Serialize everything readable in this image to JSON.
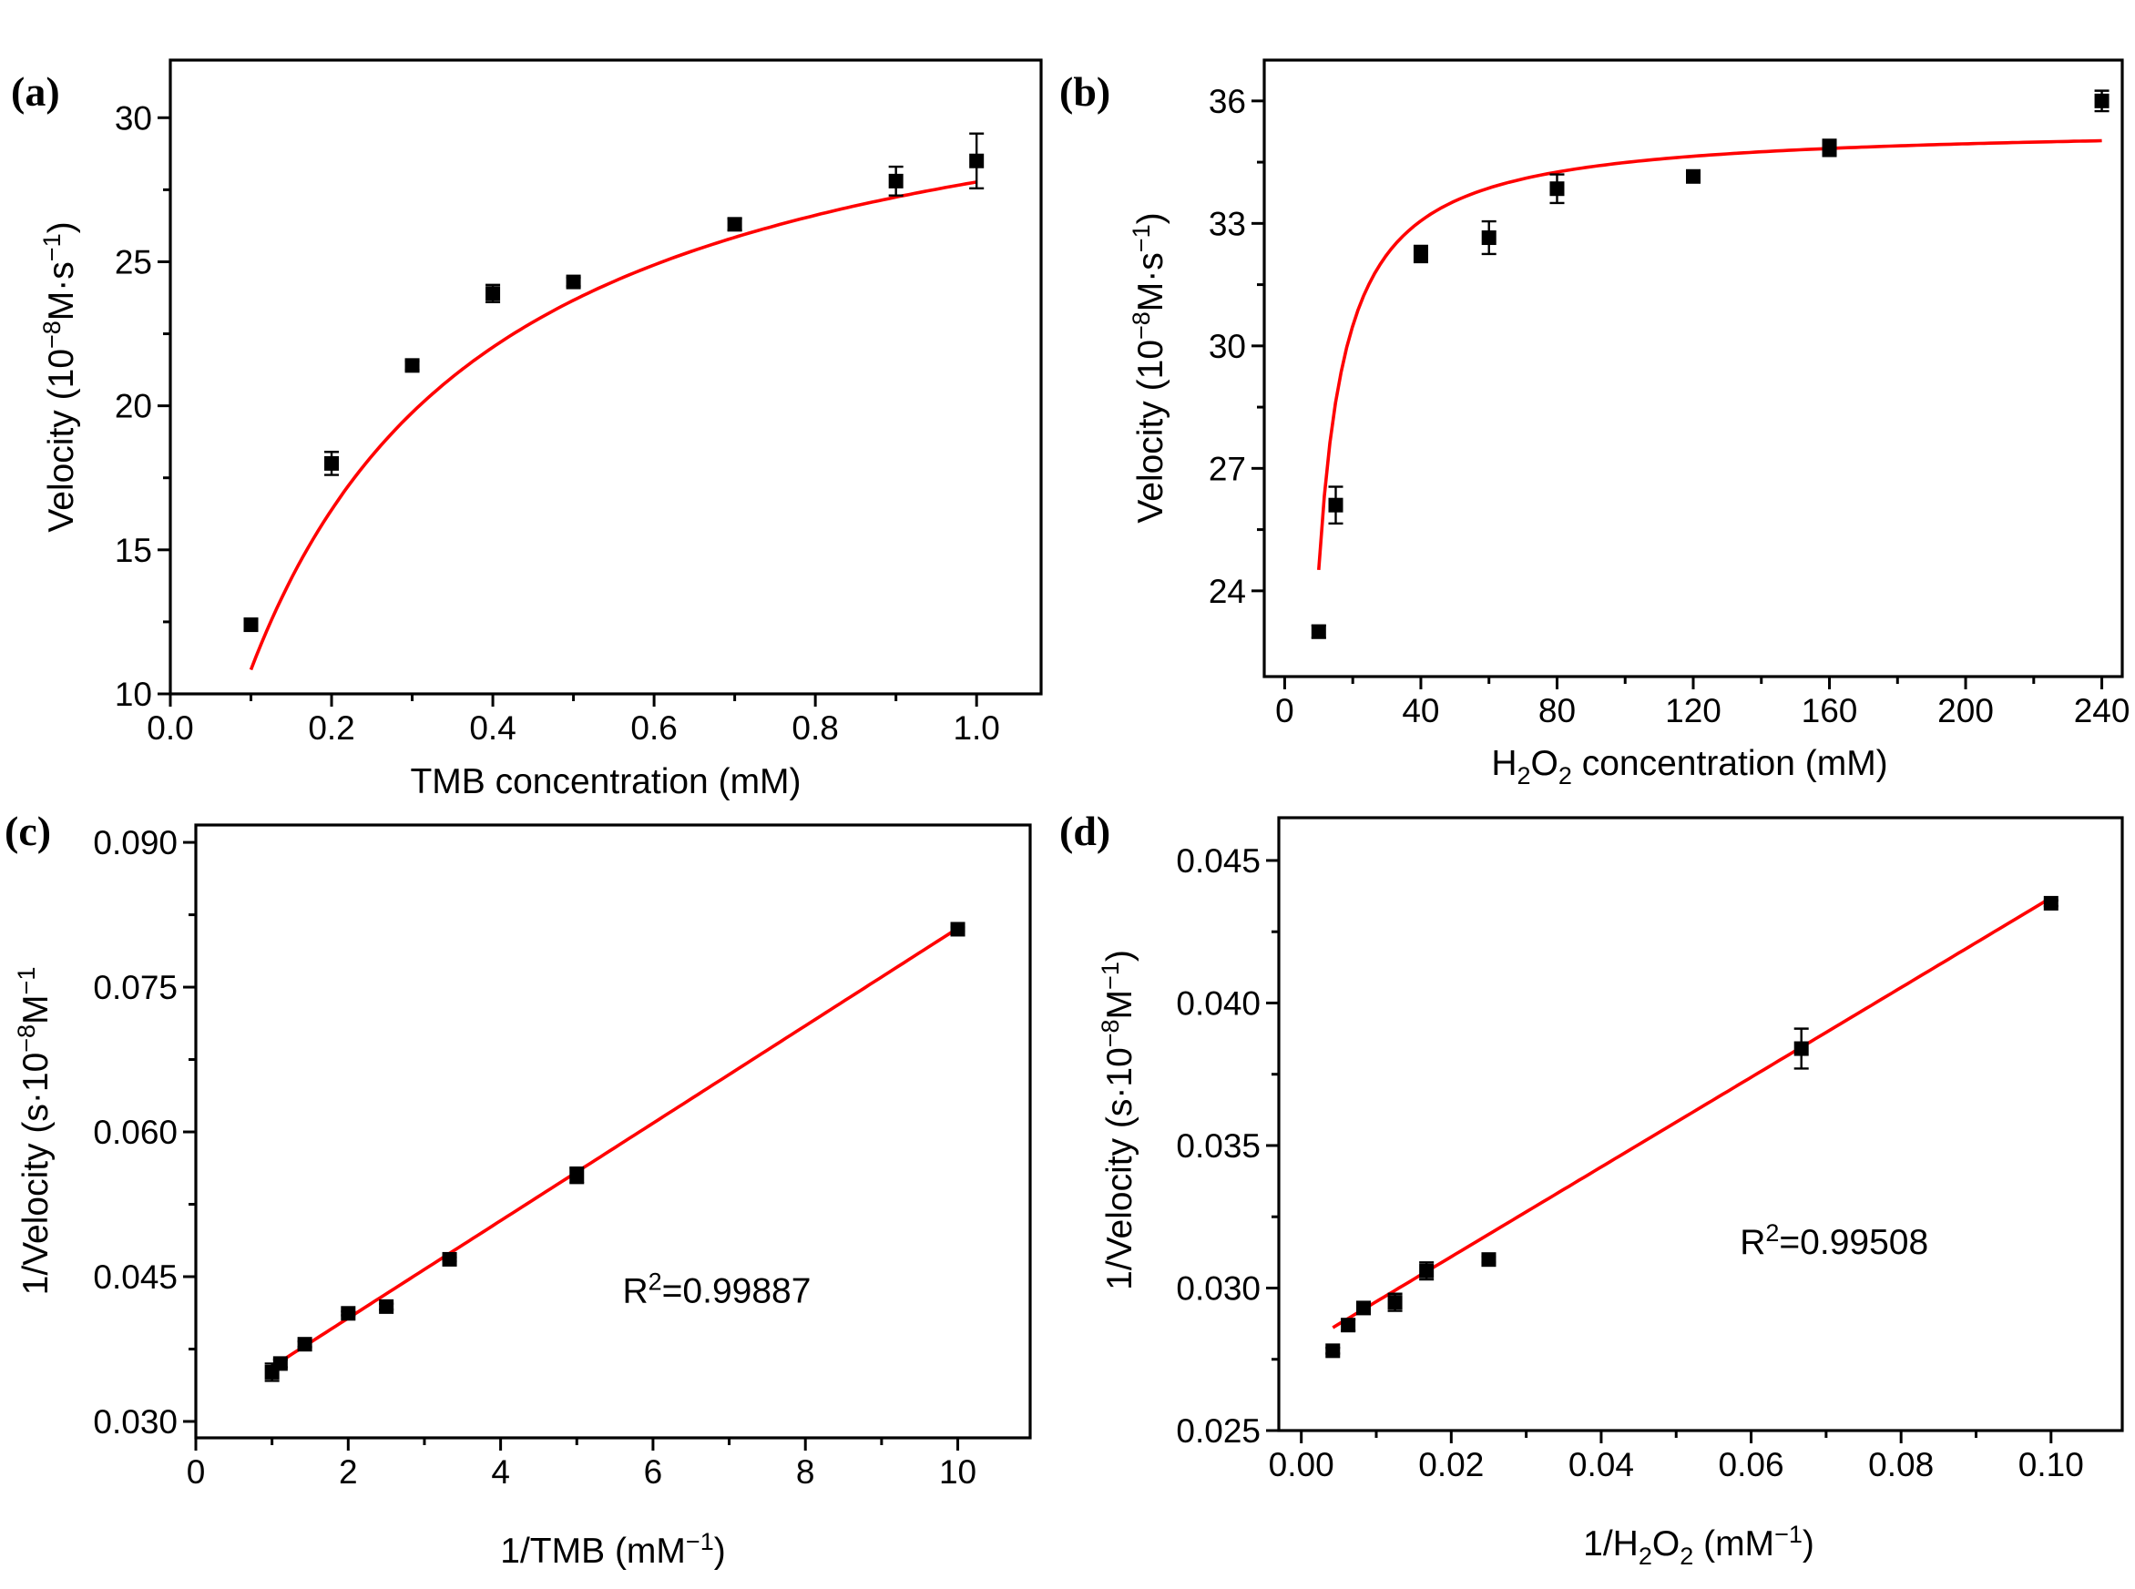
{
  "chart_data": [
    {
      "panel_label": "(a)",
      "type": "scatter",
      "title": "",
      "xlabel": "TMB concentration (mM)",
      "ylabel_parts": {
        "main": "Velocity (10",
        "sup1": "−8",
        "mid": "M·s",
        "sup2": "−1",
        "end": ")"
      },
      "xlim": [
        0.0,
        1.08
      ],
      "ylim": [
        10,
        32
      ],
      "xticks": [
        0.0,
        0.2,
        0.4,
        0.6,
        0.8,
        1.0
      ],
      "xticklabels": [
        "0.0",
        "0.2",
        "0.4",
        "0.6",
        "0.8",
        "1.0"
      ],
      "yticks": [
        10,
        15,
        20,
        25,
        30
      ],
      "yticklabels": [
        "10",
        "15",
        "20",
        "25",
        "30"
      ],
      "x": [
        0.1,
        0.2,
        0.3,
        0.4,
        0.5,
        0.7,
        0.9,
        1.0
      ],
      "y": [
        12.4,
        18.0,
        21.4,
        23.9,
        24.3,
        26.3,
        27.8,
        28.5
      ],
      "err": [
        0.2,
        0.4,
        0.15,
        0.3,
        0.15,
        0.2,
        0.5,
        0.95
      ],
      "fit": {
        "model": "michaelis-menten",
        "vmax": 33.6,
        "km": 0.21,
        "x_range": [
          0.1,
          1.0
        ]
      },
      "fit_color": "#ff0000"
    },
    {
      "panel_label": "(b)",
      "type": "scatter",
      "title": "",
      "xlabel_parts": {
        "main": "H",
        "sub1": "2",
        "mid": "O",
        "sub2": "2",
        "end": " concentration (mM)"
      },
      "ylabel_parts": {
        "main": "Velocity (10",
        "sup1": "−8",
        "mid": "M·s",
        "sup2": "−1",
        "end": ")"
      },
      "xlim": [
        -6,
        246
      ],
      "ylim": [
        21.9,
        37.0
      ],
      "xticks": [
        0,
        40,
        80,
        120,
        160,
        200,
        240
      ],
      "xticklabels": [
        "0",
        "40",
        "80",
        "120",
        "160",
        "200",
        "240"
      ],
      "yticks": [
        24,
        27,
        30,
        33,
        36
      ],
      "yticklabels": [
        "24",
        "27",
        "30",
        "33",
        "36"
      ],
      "x": [
        10,
        15,
        40,
        60,
        80,
        120,
        160,
        240
      ],
      "y": [
        23.0,
        26.1,
        32.25,
        32.65,
        33.85,
        34.15,
        34.85,
        36.0
      ],
      "err": [
        0.15,
        0.45,
        0.2,
        0.4,
        0.35,
        0.12,
        0.2,
        0.25
      ],
      "fit": {
        "model": "michaelis-menten-offset",
        "x0": 9.0,
        "vmax": 12.4,
        "km": 7.2,
        "base": 23.0,
        "x_range": [
          10,
          240
        ]
      },
      "fit_color": "#ff0000"
    },
    {
      "panel_label": "(c)",
      "type": "scatter",
      "title": "",
      "xlabel_parts": {
        "main": "1/TMB (mM",
        "sup": "−1",
        "end": ")"
      },
      "ylabel_parts": {
        "main": "1/Velocity (s·10",
        "sup1": "−8",
        "mid": "M",
        "sup2": "−1",
        "end": ""
      },
      "annotation_parts": {
        "main": "R",
        "sup": "2",
        "end": "=0.99887"
      },
      "annotation_pos": [
        5.6,
        0.0423
      ],
      "xlim": [
        0,
        10.95
      ],
      "ylim": [
        0.0283,
        0.0918
      ],
      "xticks": [
        0,
        2,
        4,
        6,
        8,
        10
      ],
      "xticklabels": [
        "0",
        "2",
        "4",
        "6",
        "8",
        "10"
      ],
      "yticks": [
        0.03,
        0.045,
        0.06,
        0.075,
        0.09
      ],
      "yticklabels": [
        "0.030",
        "0.045",
        "0.060",
        "0.075",
        "0.090"
      ],
      "x": [
        1.0,
        1.11,
        1.43,
        2.0,
        2.5,
        3.33,
        5.0,
        10.0
      ],
      "y": [
        0.0351,
        0.036,
        0.038,
        0.0412,
        0.0419,
        0.0468,
        0.0555,
        0.081
      ],
      "err": [
        0.0009,
        0.0004,
        0.0003,
        0.0002,
        0.0003,
        0.0002,
        0.0008,
        0.0002
      ],
      "fit": {
        "model": "linear",
        "slope": 0.00505,
        "intercept": 0.0306,
        "x_range": [
          1.0,
          10.0
        ]
      },
      "fit_color": "#ff0000"
    },
    {
      "panel_label": "(d)",
      "type": "scatter",
      "title": "",
      "xlabel_parts": {
        "main": "1/H",
        "sub": "2",
        "mid": "O",
        "sub2": "2",
        "mid2": " (mM",
        "sup": "−1",
        "end": ")"
      },
      "ylabel_parts": {
        "main": "1/Velocity (s·10",
        "sup1": "−8",
        "mid": "M",
        "sup2": "−1",
        "end": ")"
      },
      "annotation_parts": {
        "main": "R",
        "sup": "2",
        "end": "=0.99508"
      },
      "annotation_pos": [
        0.0585,
        0.0312
      ],
      "xlim": [
        -0.003,
        0.1095
      ],
      "ylim": [
        0.025,
        0.0465
      ],
      "xticks": [
        0.0,
        0.02,
        0.04,
        0.06,
        0.08,
        0.1
      ],
      "xticklabels": [
        "0.00",
        "0.02",
        "0.04",
        "0.06",
        "0.08",
        "0.10"
      ],
      "yticks": [
        0.025,
        0.03,
        0.035,
        0.04,
        0.045
      ],
      "yticklabels": [
        "0.025",
        "0.030",
        "0.035",
        "0.040",
        "0.045"
      ],
      "x": [
        0.0042,
        0.00625,
        0.0083,
        0.0125,
        0.0167,
        0.025,
        0.0667,
        0.1
      ],
      "y": [
        0.0278,
        0.0287,
        0.0293,
        0.0295,
        0.0306,
        0.031,
        0.0384,
        0.0435
      ],
      "err": [
        0.0001,
        0.0002,
        0.0002,
        0.0003,
        0.0003,
        0.0001,
        0.0007,
        0.0001
      ],
      "fit": {
        "model": "linear",
        "slope": 0.1574,
        "intercept": 0.02795,
        "x_range": [
          0.0042,
          0.1
        ]
      },
      "fit_color": "#ff0000"
    }
  ]
}
